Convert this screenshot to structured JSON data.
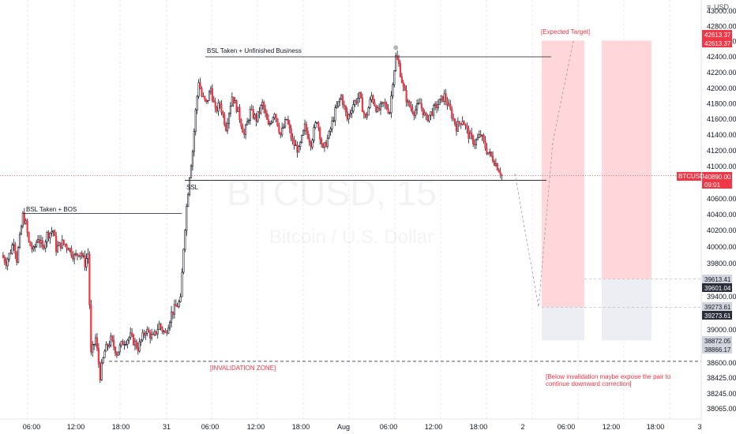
{
  "colors": {
    "up": "#ffffff",
    "down": "#f23645",
    "wick": "#131722",
    "target_box": "#ffcdd2",
    "stop_box": "#eceef3",
    "accent_red": "#f23645",
    "dark_tag": "#2a2e39",
    "grey_tag": "#d1d4dc",
    "grid": "#e6e9ef"
  },
  "watermark": {
    "symbol": "BTCUSD, 15",
    "name": "Bitcoin / U.S. Dollar"
  },
  "currency": "USD",
  "annotations": {
    "bsl_bos": "BSL Taken + BOS",
    "bsl_unfinished": "BSL Taken + Unfinished Business",
    "ssl": "SSL",
    "expected_target": "[Expected Target]",
    "invalidation_zone": "[INVALIDATION ZONE]",
    "below_invalidation_1": "[Below invalidation maybe expose the pair to",
    "below_invalidation_2": "continue downward correction]"
  },
  "price_tags": {
    "symbol": "BTCUSD",
    "last_price": "40890.00",
    "countdown": "09:01",
    "target_top": "42613.37",
    "target_top_2": "42613.37",
    "level_a": "39613.41",
    "level_b": "39601.04",
    "level_c": "39273.61",
    "level_d": "39273.61",
    "level_e": "38872.05",
    "level_f": "38866.17"
  },
  "chart_data": {
    "type": "candlestick",
    "symbol": "BTCUSD",
    "interval": "15",
    "y_ticks": [
      "43000.00",
      "42800.00",
      "42600.00",
      "42400.00",
      "42200.00",
      "42000.00",
      "41800.00",
      "41600.00",
      "41400.00",
      "41200.00",
      "41000.00",
      "40600.00",
      "40400.00",
      "40200.00",
      "40000.00",
      "39800.00",
      "39400.00",
      "39000.00",
      "38600.00",
      "38425.00",
      "38245.00",
      "38065.00"
    ],
    "x_ticks": [
      "06:00",
      "12:00",
      "18:00",
      "31",
      "06:00",
      "12:00",
      "18:00",
      "Aug",
      "06:00",
      "12:00",
      "18:00",
      "2",
      "06:00",
      "12:00",
      "18:00",
      "3"
    ],
    "levels": {
      "bsl_bos": 40415,
      "bsl_unfinished": 42400,
      "ssl": 40830,
      "invalidation": 38620,
      "expected_target": 42613.37,
      "projection_low": 39273.61
    },
    "close_path": [
      [
        0,
        39900
      ],
      [
        3,
        39820
      ],
      [
        6,
        39950
      ],
      [
        8,
        40080
      ],
      [
        10,
        39850
      ],
      [
        12,
        40100
      ],
      [
        14,
        40390
      ],
      [
        16,
        40280
      ],
      [
        18,
        40050
      ],
      [
        21,
        39950
      ],
      [
        24,
        40120
      ],
      [
        27,
        39980
      ],
      [
        30,
        40150
      ],
      [
        34,
        40200
      ],
      [
        36,
        39980
      ],
      [
        40,
        40050
      ],
      [
        44,
        40000
      ],
      [
        48,
        39880
      ],
      [
        52,
        39950
      ],
      [
        55,
        39800
      ],
      [
        57,
        39920
      ],
      [
        59,
        38700
      ],
      [
        62,
        38900
      ],
      [
        65,
        38450
      ],
      [
        68,
        38740
      ],
      [
        72,
        38880
      ],
      [
        76,
        38720
      ],
      [
        80,
        38850
      ],
      [
        85,
        38920
      ],
      [
        90,
        38780
      ],
      [
        95,
        39000
      ],
      [
        100,
        38900
      ],
      [
        104,
        39060
      ],
      [
        108,
        38950
      ],
      [
        112,
        39200
      ],
      [
        116,
        39300
      ],
      [
        118,
        39350
      ],
      [
        120,
        40000
      ],
      [
        122,
        40500
      ],
      [
        124,
        40900
      ],
      [
        126,
        41200
      ],
      [
        128,
        41700
      ],
      [
        130,
        42100
      ],
      [
        132,
        41900
      ],
      [
        135,
        41800
      ],
      [
        138,
        42000
      ],
      [
        141,
        41700
      ],
      [
        144,
        41800
      ],
      [
        148,
        41500
      ],
      [
        152,
        41900
      ],
      [
        156,
        41700
      ],
      [
        160,
        41400
      ],
      [
        164,
        41700
      ],
      [
        168,
        41600
      ],
      [
        172,
        41800
      ],
      [
        176,
        41500
      ],
      [
        180,
        41700
      ],
      [
        184,
        41400
      ],
      [
        188,
        41600
      ],
      [
        192,
        41300
      ],
      [
        196,
        41200
      ],
      [
        200,
        41500
      ],
      [
        204,
        41300
      ],
      [
        208,
        41600
      ],
      [
        212,
        41200
      ],
      [
        216,
        41400
      ],
      [
        220,
        41700
      ],
      [
        224,
        41900
      ],
      [
        228,
        41600
      ],
      [
        232,
        41800
      ],
      [
        236,
        41900
      ],
      [
        240,
        41600
      ],
      [
        244,
        41900
      ],
      [
        248,
        41700
      ],
      [
        252,
        41800
      ],
      [
        256,
        41700
      ],
      [
        258,
        42100
      ],
      [
        260,
        42400
      ],
      [
        262,
        42300
      ],
      [
        265,
        42000
      ],
      [
        268,
        41800
      ],
      [
        272,
        41700
      ],
      [
        276,
        41800
      ],
      [
        280,
        41600
      ],
      [
        284,
        41700
      ],
      [
        288,
        41800
      ],
      [
        292,
        41900
      ],
      [
        296,
        41700
      ],
      [
        300,
        41500
      ],
      [
        304,
        41600
      ],
      [
        308,
        41400
      ],
      [
        312,
        41300
      ],
      [
        316,
        41400
      ],
      [
        320,
        41200
      ],
      [
        324,
        41100
      ],
      [
        327,
        41000
      ],
      [
        330,
        40890
      ]
    ],
    "projection_path": [
      [
        330,
        40890
      ],
      [
        350,
        39273.61
      ],
      [
        360,
        41500
      ],
      [
        380,
        42613.37
      ]
    ]
  }
}
